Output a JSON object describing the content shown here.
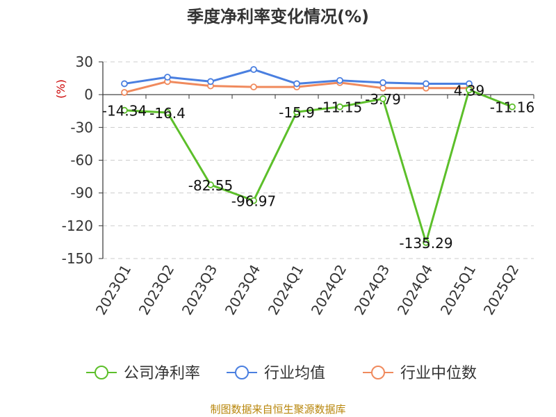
{
  "chart_data": {
    "type": "line",
    "title": "季度净利率变化情况(%)",
    "ylabel": "(%)",
    "xlabel": "",
    "ylim": [
      -150,
      30
    ],
    "yticks": [
      30,
      0,
      -30,
      -60,
      -90,
      -120,
      -150
    ],
    "grid": true,
    "legend_position": "bottom",
    "categories": [
      "2023Q1",
      "2023Q2",
      "2023Q3",
      "2023Q4",
      "2024Q1",
      "2024Q2",
      "2024Q3",
      "2024Q4",
      "2025Q1",
      "2025Q2"
    ],
    "series": [
      {
        "name": "公司净利率",
        "color": "#5cbf2a",
        "values": [
          -14.34,
          -16.4,
          -82.55,
          -96.97,
          -15.9,
          -11.15,
          -3.79,
          -135.29,
          4.39,
          -11.16
        ],
        "labels": [
          "-14.34",
          "-16.4",
          "-82.55",
          "-96.97",
          "-15.9",
          "-11.15",
          "-3.79",
          "-135.29",
          "4.39",
          "-11.16"
        ]
      },
      {
        "name": "行业均值",
        "color": "#4a7fe0",
        "values": [
          10,
          16,
          12,
          23,
          10,
          13,
          11,
          10,
          10,
          null
        ]
      },
      {
        "name": "行业中位数",
        "color": "#f08a5d",
        "values": [
          2,
          12,
          8,
          7,
          7,
          11,
          6,
          6,
          6,
          null
        ]
      }
    ]
  },
  "source": "制图数据来自恒生聚源数据库"
}
